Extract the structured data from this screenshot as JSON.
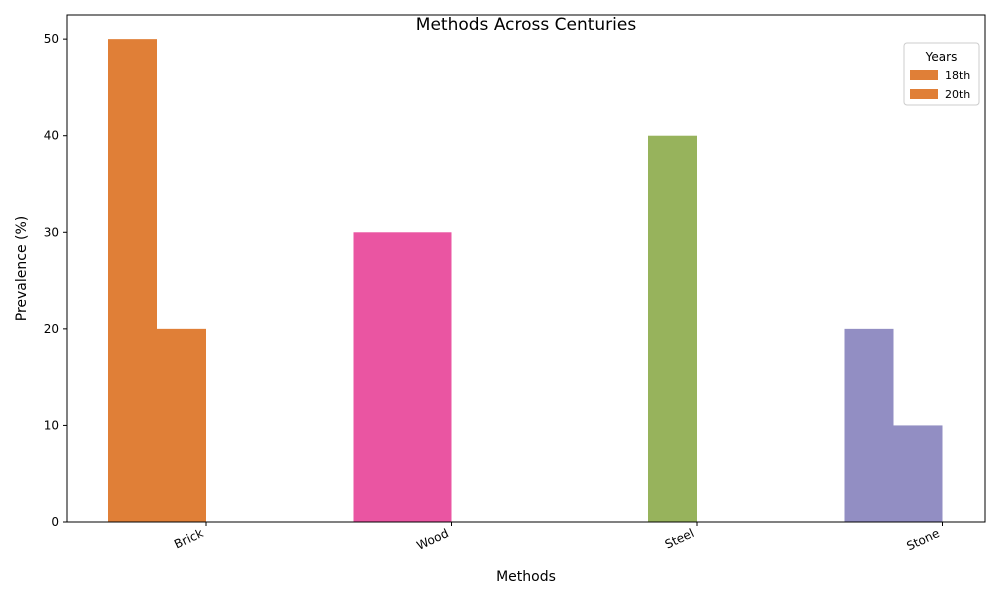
{
  "chart_data": {
    "type": "bar",
    "title": "Methods Across Centuries",
    "xlabel": "Methods",
    "ylabel": "Prevalence (%)",
    "ylim": [
      0,
      52.5
    ],
    "yticks": [
      0,
      10,
      20,
      30,
      40,
      50
    ],
    "categories": [
      "Brick",
      "Wood",
      "Steel",
      "Stone"
    ],
    "category_colors": [
      "#e07f37",
      "#ea55a2",
      "#97b35c",
      "#928ec3"
    ],
    "series": [
      {
        "name": "18th",
        "values": [
          50,
          30,
          0,
          20
        ]
      },
      {
        "name": "20th",
        "values": [
          20,
          30,
          40,
          10
        ]
      }
    ],
    "legend": {
      "title": "Years",
      "position": "top-right",
      "swatch_color": "#e07f37"
    },
    "grid": false
  }
}
